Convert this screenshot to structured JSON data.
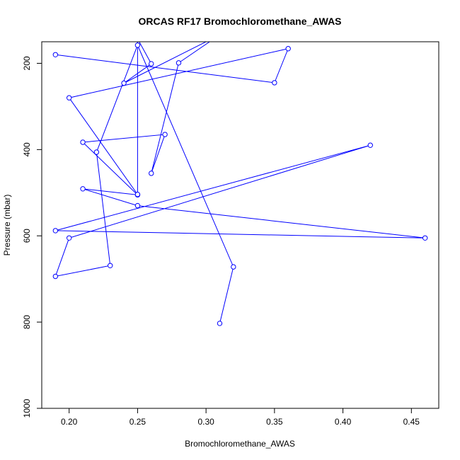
{
  "chart_data": {
    "type": "line",
    "title": "ORCAS RF17 Bromochloromethane_AWAS",
    "xlabel": "Bromochloromethane_AWAS",
    "ylabel": "Pressure (mbar)",
    "xlim": [
      0.18,
      0.47
    ],
    "ylim": [
      1000,
      150
    ],
    "y_reversed": true,
    "x_ticks": [
      0.2,
      0.25,
      0.3,
      0.35,
      0.4,
      0.45
    ],
    "x_tick_labels": [
      "0.20",
      "0.25",
      "0.30",
      "0.35",
      "0.40",
      "0.45"
    ],
    "y_ticks": [
      200,
      400,
      600,
      800,
      1000
    ],
    "y_tick_labels": [
      "200",
      "400",
      "600",
      "800",
      "1000"
    ],
    "series": [
      {
        "color": "#0000ff",
        "marker": "open-circle",
        "x": [
          0.31,
          0.32,
          0.25,
          0.22,
          0.23,
          0.19,
          0.2,
          0.42,
          0.19,
          0.46,
          0.25,
          0.21,
          0.25,
          0.21,
          0.27,
          0.26,
          0.28,
          0.31,
          0.24,
          0.26,
          0.25,
          0.25,
          0.2,
          0.36,
          0.35,
          0.19
        ],
        "y": [
          803,
          672,
          158,
          406,
          669,
          694,
          605,
          390,
          588,
          605,
          530,
          491,
          505,
          383,
          365,
          455,
          199,
          134,
          246,
          201,
          143,
          504,
          280,
          166,
          245,
          180
        ]
      }
    ]
  }
}
